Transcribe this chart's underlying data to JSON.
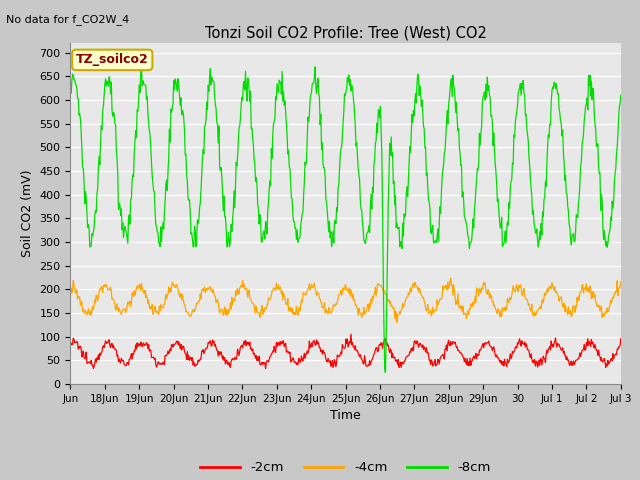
{
  "title": "Tonzi Soil CO2 Profile: Tree (West) CO2",
  "no_data_label": "No data for f_CO2W_4",
  "ylabel": "Soil CO2 (mV)",
  "xlabel": "Time",
  "annotation": "TZ_soilco2",
  "ylim": [
    0,
    720
  ],
  "yticks": [
    0,
    50,
    100,
    150,
    200,
    250,
    300,
    350,
    400,
    450,
    500,
    550,
    600,
    650,
    700
  ],
  "bg_color": "#e8e8e8",
  "grid_color": "white",
  "line_colors": {
    "2cm": "#ff0000",
    "4cm": "#ffa500",
    "8cm": "#00dd00"
  },
  "legend_labels": [
    "-2cm",
    "-4cm",
    "-8cm"
  ],
  "tick_positions": [
    0,
    1,
    2,
    3,
    4,
    5,
    6,
    7,
    8,
    9,
    10,
    11,
    12,
    13,
    14,
    15,
    16
  ],
  "tick_labels": [
    "Jun",
    "18Jun",
    "19Jun",
    "20Jun",
    "21Jun",
    "22Jun",
    "23Jun",
    "24Jun",
    "25Jun",
    "26Jun",
    "27Jun",
    "28Jun",
    "29Jun",
    "30",
    "Jul 1",
    "Jul 2",
    "Jul 3"
  ],
  "figsize": [
    6.4,
    4.8
  ],
  "dpi": 100
}
